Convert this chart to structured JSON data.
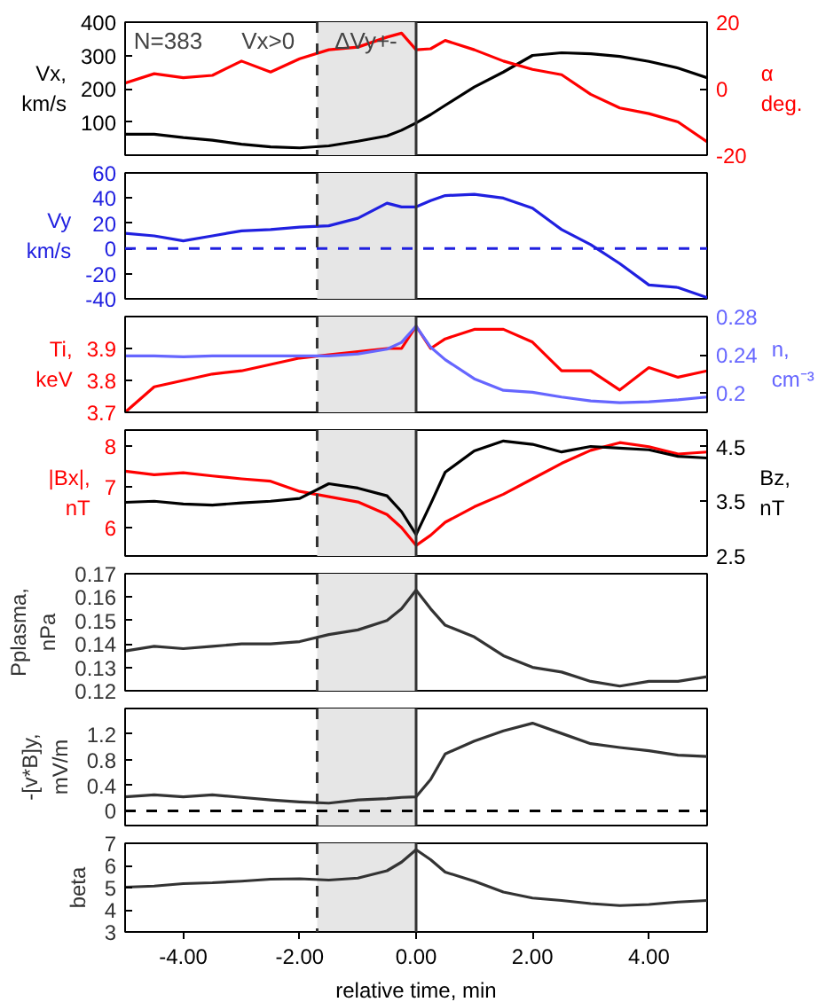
{
  "chart_data": [
    {
      "type": "line",
      "annotations": [
        "N=383",
        "Vx>0",
        "ΔVy+-"
      ],
      "ylabel": "Vx, km/s",
      "y2label": "α deg.",
      "tick_labels": "y",
      "xlim": [
        -5,
        5
      ],
      "ylim": [
        0,
        400
      ],
      "yticks": [
        100,
        200,
        300,
        400
      ],
      "y2lim": [
        -20,
        20
      ],
      "y2ticks": [
        -20,
        0,
        20
      ],
      "x": [
        -5,
        -4.5,
        -4,
        -3.5,
        -3,
        -2.5,
        -2,
        -1.5,
        -1,
        -0.5,
        -0.25,
        0,
        0.25,
        0.5,
        1,
        1.5,
        2,
        2.5,
        3,
        3.5,
        4,
        4.5,
        5
      ],
      "series": [
        {
          "color": "#000000",
          "values": [
            63,
            63,
            53,
            45,
            33,
            25,
            22,
            28,
            42,
            58,
            75,
            97,
            122,
            150,
            205,
            250,
            300,
            308,
            305,
            297,
            282,
            262,
            233
          ]
        },
        {
          "color": "#ff0000",
          "axis": "y2",
          "values": [
            1.7,
            4.5,
            3.3,
            4,
            8.3,
            5,
            9,
            11.7,
            12.5,
            15.5,
            16.7,
            11.7,
            12,
            14.5,
            11.7,
            8.3,
            5.8,
            4.2,
            -1.7,
            -5.8,
            -7.5,
            -10,
            -16
          ]
        }
      ],
      "bands": [
        {
          "axis": "x",
          "from": -1.7,
          "to": 0,
          "color": "#e6e6e6"
        }
      ],
      "ref_lines": [
        {
          "axis": "x",
          "value": -1.7,
          "color": "#333333",
          "line_style": "dashed"
        },
        {
          "axis": "x",
          "value": 0,
          "color": "#333333",
          "line_style": "solid"
        }
      ]
    },
    {
      "type": "line",
      "ylabel": "Vy km/s",
      "tick_labels": "y",
      "xlim": [
        -5,
        5
      ],
      "ylim": [
        -40,
        60
      ],
      "yticks": [
        -40,
        -20,
        0,
        20,
        40,
        60
      ],
      "x": [
        -5,
        -4.5,
        -4,
        -3.5,
        -3,
        -2.5,
        -2,
        -1.5,
        -1,
        -0.5,
        -0.25,
        0,
        0.25,
        0.5,
        1,
        1.5,
        2,
        2.5,
        3,
        3.5,
        4,
        4.5,
        5
      ],
      "series": [
        {
          "color": "#2020e0",
          "values": [
            12,
            10,
            6,
            10,
            14,
            15,
            17,
            18,
            24,
            36,
            33,
            33,
            38,
            42,
            43,
            40,
            32,
            15,
            3,
            -12,
            -29,
            -31,
            -39
          ]
        }
      ],
      "bands": [
        {
          "axis": "x",
          "from": -1.7,
          "to": 0,
          "color": "#e6e6e6"
        }
      ],
      "ref_lines": [
        {
          "axis": "x",
          "value": -1.7,
          "color": "#333333",
          "line_style": "dashed"
        },
        {
          "axis": "x",
          "value": 0,
          "color": "#333333",
          "line_style": "solid"
        },
        {
          "axis": "y",
          "value": 0,
          "color": "#2020e0",
          "line_style": "dashed"
        }
      ]
    },
    {
      "type": "line",
      "ylabel": "Ti, keV",
      "y2label": "n, cm⁻³",
      "tick_labels": "y",
      "xlim": [
        -5,
        5
      ],
      "ylim": [
        3.7,
        4.0
      ],
      "yticks": [
        3.7,
        3.8,
        3.9
      ],
      "y2lim": [
        0.18,
        0.28
      ],
      "y2ticks": [
        0.2,
        0.24,
        0.28
      ],
      "x": [
        -5,
        -4.5,
        -4,
        -3.5,
        -3,
        -2.5,
        -2,
        -1.5,
        -1,
        -0.5,
        -0.25,
        0,
        0.25,
        0.5,
        1,
        1.5,
        2,
        2.5,
        3,
        3.5,
        4,
        4.5,
        5
      ],
      "series": [
        {
          "color": "#ff0000",
          "values": [
            3.7,
            3.78,
            3.8,
            3.82,
            3.83,
            3.85,
            3.87,
            3.88,
            3.89,
            3.9,
            3.9,
            3.97,
            3.9,
            3.93,
            3.96,
            3.96,
            3.92,
            3.83,
            3.83,
            3.77,
            3.84,
            3.81,
            3.83
          ]
        },
        {
          "color": "#6666ff",
          "axis": "y2",
          "values": [
            0.239,
            0.239,
            0.238,
            0.239,
            0.239,
            0.239,
            0.239,
            0.239,
            0.241,
            0.246,
            0.253,
            0.27,
            0.248,
            0.235,
            0.215,
            0.203,
            0.201,
            0.196,
            0.192,
            0.19,
            0.191,
            0.193,
            0.196
          ]
        }
      ],
      "bands": [
        {
          "axis": "x",
          "from": -1.7,
          "to": 0,
          "color": "#e6e6e6"
        }
      ],
      "ref_lines": [
        {
          "axis": "x",
          "value": -1.7,
          "color": "#333333",
          "line_style": "dashed"
        },
        {
          "axis": "x",
          "value": 0,
          "color": "#333333",
          "line_style": "solid"
        }
      ]
    },
    {
      "type": "line",
      "ylabel": "|Bx|, nT",
      "y2label": "Bz, nT",
      "tick_labels": "y",
      "xlim": [
        -5,
        5
      ],
      "ylim": [
        5.3,
        8.4
      ],
      "yticks": [
        6,
        7,
        8
      ],
      "y2lim": [
        2.5,
        4.8
      ],
      "y2ticks": [
        2.5,
        3.5,
        4.5
      ],
      "x": [
        -5,
        -4.5,
        -4,
        -3.5,
        -3,
        -2.5,
        -2,
        -1.5,
        -1,
        -0.5,
        -0.25,
        0,
        0.25,
        0.5,
        1,
        1.5,
        2,
        2.5,
        3,
        3.5,
        4,
        4.5,
        5
      ],
      "series": [
        {
          "color": "#ff0000",
          "values": [
            7.39,
            7.3,
            7.35,
            7.27,
            7.2,
            7.14,
            6.89,
            6.76,
            6.63,
            6.32,
            6.0,
            5.56,
            5.81,
            6.13,
            6.51,
            6.82,
            7.2,
            7.58,
            7.9,
            8.09,
            7.99,
            7.81,
            7.86
          ]
        },
        {
          "color": "#000000",
          "axis": "y2",
          "values": [
            3.48,
            3.5,
            3.45,
            3.43,
            3.47,
            3.5,
            3.55,
            3.82,
            3.74,
            3.6,
            3.31,
            2.89,
            3.45,
            4.03,
            4.42,
            4.6,
            4.54,
            4.4,
            4.5,
            4.47,
            4.44,
            4.32,
            4.29
          ]
        }
      ],
      "bands": [
        {
          "axis": "x",
          "from": -1.7,
          "to": 0,
          "color": "#e6e6e6"
        }
      ],
      "ref_lines": [
        {
          "axis": "x",
          "value": -1.7,
          "color": "#333333",
          "line_style": "dashed"
        },
        {
          "axis": "x",
          "value": 0,
          "color": "#333333",
          "line_style": "solid"
        }
      ]
    },
    {
      "type": "line",
      "ylabel": "Pplasma, nPa",
      "tick_labels": "y",
      "xlim": [
        -5,
        5
      ],
      "ylim": [
        0.12,
        0.17
      ],
      "yticks": [
        0.12,
        0.13,
        0.14,
        0.15,
        0.16,
        0.17
      ],
      "x": [
        -5,
        -4.5,
        -4,
        -3.5,
        -3,
        -2.5,
        -2,
        -1.5,
        -1,
        -0.5,
        -0.25,
        0,
        0.25,
        0.5,
        1,
        1.5,
        2,
        2.5,
        3,
        3.5,
        4,
        4.5,
        5
      ],
      "series": [
        {
          "color": "#333333",
          "values": [
            0.137,
            0.139,
            0.138,
            0.139,
            0.14,
            0.14,
            0.141,
            0.144,
            0.146,
            0.15,
            0.155,
            0.163,
            0.155,
            0.148,
            0.143,
            0.135,
            0.13,
            0.128,
            0.124,
            0.122,
            0.124,
            0.124,
            0.126
          ]
        }
      ],
      "bands": [
        {
          "axis": "x",
          "from": -1.7,
          "to": 0,
          "color": "#e6e6e6"
        }
      ],
      "ref_lines": [
        {
          "axis": "x",
          "value": -1.7,
          "color": "#333333",
          "line_style": "dashed"
        },
        {
          "axis": "x",
          "value": 0,
          "color": "#333333",
          "line_style": "solid"
        }
      ]
    },
    {
      "type": "line",
      "ylabel": "-[v*B]y, mV/m",
      "tick_labels": "y",
      "xlim": [
        -5,
        5
      ],
      "ylim": [
        -0.23,
        1.6
      ],
      "yticks": [
        0,
        0.4,
        0.8,
        1.2
      ],
      "x": [
        -5,
        -4.5,
        -4,
        -3.5,
        -3,
        -2.5,
        -2,
        -1.5,
        -1,
        -0.5,
        -0.25,
        0,
        0.25,
        0.5,
        1,
        1.5,
        2,
        2.5,
        3,
        3.5,
        4,
        4.5,
        5
      ],
      "series": [
        {
          "color": "#333333",
          "values": [
            0.22,
            0.25,
            0.22,
            0.25,
            0.21,
            0.17,
            0.14,
            0.12,
            0.17,
            0.19,
            0.21,
            0.22,
            0.49,
            0.89,
            1.09,
            1.25,
            1.37,
            1.21,
            1.05,
            0.99,
            0.94,
            0.87,
            0.85
          ]
        }
      ],
      "bands": [
        {
          "axis": "x",
          "from": -1.7,
          "to": 0,
          "color": "#e6e6e6"
        }
      ],
      "ref_lines": [
        {
          "axis": "x",
          "value": -1.7,
          "color": "#333333",
          "line_style": "dashed"
        },
        {
          "axis": "x",
          "value": 0,
          "color": "#333333",
          "line_style": "solid"
        },
        {
          "axis": "y",
          "value": 0,
          "color": "#000000",
          "line_style": "dashed"
        }
      ]
    },
    {
      "type": "line",
      "ylabel": "beta",
      "xlabel": "relative time, min",
      "xlim": [
        -5,
        5
      ],
      "xticks": [
        {
          "value": -4,
          "label": "-4.00"
        },
        {
          "value": -2,
          "label": "-2.00"
        },
        {
          "value": 0,
          "label": "0.00"
        },
        {
          "value": 2,
          "label": "2.00"
        },
        {
          "value": 4,
          "label": "4.00"
        }
      ],
      "ylim": [
        3,
        7
      ],
      "yticks": [
        3,
        4,
        5,
        6,
        7
      ],
      "x": [
        -5,
        -4.5,
        -4,
        -3.5,
        -3,
        -2.5,
        -2,
        -1.5,
        -1,
        -0.5,
        -0.25,
        0,
        0.25,
        0.5,
        1,
        1.5,
        2,
        2.5,
        3,
        3.5,
        4,
        4.5,
        5
      ],
      "series": [
        {
          "color": "#333333",
          "values": [
            5.02,
            5.07,
            5.18,
            5.22,
            5.29,
            5.38,
            5.4,
            5.34,
            5.43,
            5.76,
            6.15,
            6.71,
            6.26,
            5.7,
            5.29,
            4.8,
            4.53,
            4.42,
            4.28,
            4.19,
            4.24,
            4.35,
            4.42
          ]
        }
      ],
      "bands": [
        {
          "axis": "x",
          "from": -1.7,
          "to": 0,
          "color": "#e6e6e6"
        }
      ],
      "ref_lines": [
        {
          "axis": "x",
          "value": -1.7,
          "color": "#333333",
          "line_style": "dashed"
        },
        {
          "axis": "x",
          "value": 0,
          "color": "#333333",
          "line_style": "solid"
        }
      ]
    }
  ]
}
